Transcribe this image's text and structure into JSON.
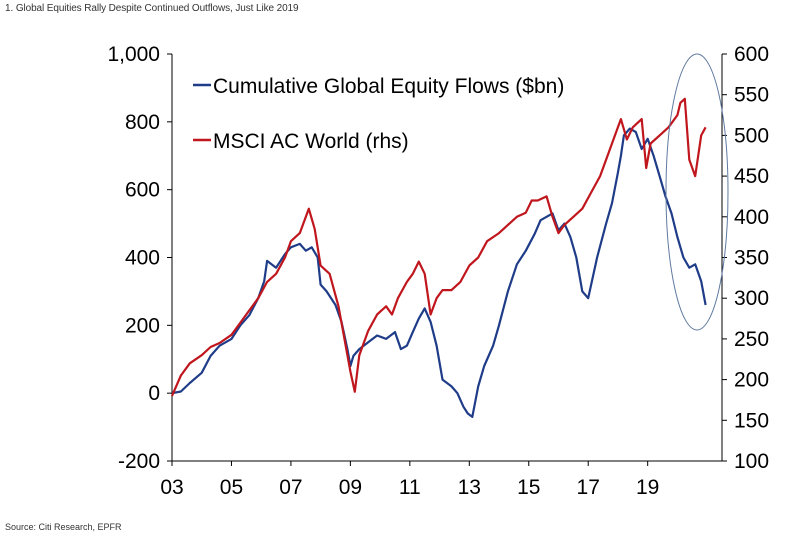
{
  "title": "1. Global Equities Rally Despite Continued Outflows, Just Like 2019",
  "source": "Source: Citi Research, EPFR",
  "chart_data": {
    "type": "line",
    "title": "1. Global Equities Rally Despite Continued Outflows, Just Like 2019",
    "xlabel": "",
    "ylabel": "",
    "x_tick_labels": [
      "03",
      "05",
      "07",
      "09",
      "11",
      "13",
      "15",
      "17",
      "19"
    ],
    "x_ticks": [
      2003,
      2005,
      2007,
      2009,
      2011,
      2013,
      2015,
      2017,
      2019
    ],
    "xlim": [
      2003,
      2021.5
    ],
    "y_left": {
      "lim": [
        -200,
        1000
      ],
      "ticks": [
        -200,
        0,
        200,
        400,
        600,
        800,
        1000
      ],
      "tick_labels": [
        "-200",
        "0",
        "200",
        "400",
        "600",
        "800",
        "1,000"
      ]
    },
    "y_right": {
      "lim": [
        100,
        600
      ],
      "ticks": [
        100,
        150,
        200,
        250,
        300,
        350,
        400,
        450,
        500,
        550,
        600
      ],
      "tick_labels": [
        "100",
        "150",
        "200",
        "250",
        "300",
        "350",
        "400",
        "450",
        "500",
        "550",
        "600"
      ]
    },
    "grid": false,
    "legend_position": "top-left",
    "annotation": "ellipse highlighting 2020 decline",
    "series": [
      {
        "name": "Cumulative Global Equity Flows ($bn)",
        "axis": "left",
        "color": "#1f3c88",
        "x": [
          2003.0,
          2003.3,
          2003.6,
          2004.0,
          2004.3,
          2004.6,
          2005.0,
          2005.3,
          2005.6,
          2005.9,
          2006.1,
          2006.2,
          2006.5,
          2006.8,
          2007.0,
          2007.3,
          2007.5,
          2007.7,
          2007.9,
          2008.0,
          2008.2,
          2008.5,
          2008.7,
          2008.9,
          2009.0,
          2009.1,
          2009.3,
          2009.6,
          2009.9,
          2010.2,
          2010.5,
          2010.7,
          2010.9,
          2011.1,
          2011.3,
          2011.5,
          2011.7,
          2011.9,
          2012.1,
          2012.4,
          2012.6,
          2012.8,
          2012.95,
          2013.1,
          2013.3,
          2013.5,
          2013.8,
          2014.0,
          2014.3,
          2014.6,
          2014.9,
          2015.2,
          2015.4,
          2015.6,
          2015.8,
          2016.0,
          2016.2,
          2016.4,
          2016.6,
          2016.8,
          2017.0,
          2017.3,
          2017.6,
          2017.8,
          2018.0,
          2018.1,
          2018.2,
          2018.4,
          2018.6,
          2018.8,
          2019.0,
          2019.2,
          2019.4,
          2019.6,
          2019.8,
          2020.0,
          2020.2,
          2020.4,
          2020.6,
          2020.8,
          2020.95
        ],
        "values": [
          0,
          5,
          30,
          60,
          110,
          140,
          160,
          200,
          230,
          280,
          330,
          390,
          370,
          410,
          430,
          440,
          420,
          430,
          400,
          320,
          300,
          260,
          210,
          130,
          80,
          110,
          130,
          150,
          170,
          160,
          180,
          130,
          140,
          180,
          220,
          250,
          210,
          140,
          40,
          20,
          0,
          -40,
          -60,
          -70,
          20,
          80,
          140,
          200,
          300,
          380,
          420,
          470,
          510,
          520,
          530,
          480,
          500,
          460,
          400,
          300,
          280,
          400,
          500,
          560,
          650,
          700,
          760,
          780,
          770,
          720,
          750,
          700,
          640,
          580,
          530,
          460,
          400,
          370,
          380,
          330,
          260
        ]
      },
      {
        "name": "MSCI AC World (rhs)",
        "axis": "right",
        "color": "#c0161d",
        "x": [
          2003.0,
          2003.3,
          2003.6,
          2004.0,
          2004.3,
          2004.6,
          2005.0,
          2005.3,
          2005.6,
          2005.9,
          2006.2,
          2006.5,
          2006.8,
          2007.0,
          2007.3,
          2007.6,
          2007.8,
          2008.0,
          2008.3,
          2008.6,
          2008.9,
          2009.0,
          2009.15,
          2009.3,
          2009.6,
          2009.9,
          2010.2,
          2010.4,
          2010.6,
          2010.9,
          2011.1,
          2011.3,
          2011.5,
          2011.7,
          2011.9,
          2012.1,
          2012.4,
          2012.7,
          2013.0,
          2013.3,
          2013.6,
          2014.0,
          2014.3,
          2014.6,
          2014.9,
          2015.1,
          2015.3,
          2015.6,
          2015.8,
          2016.0,
          2016.2,
          2016.5,
          2016.8,
          2017.1,
          2017.4,
          2017.7,
          2018.0,
          2018.1,
          2018.3,
          2018.5,
          2018.8,
          2018.95,
          2019.1,
          2019.4,
          2019.7,
          2020.0,
          2020.1,
          2020.25,
          2020.4,
          2020.6,
          2020.8,
          2020.95
        ],
        "values": [
          180,
          205,
          220,
          230,
          240,
          245,
          255,
          270,
          285,
          300,
          320,
          330,
          350,
          370,
          380,
          410,
          385,
          340,
          330,
          290,
          230,
          210,
          185,
          230,
          260,
          280,
          290,
          280,
          300,
          320,
          330,
          345,
          330,
          280,
          300,
          310,
          310,
          320,
          340,
          350,
          370,
          380,
          390,
          400,
          405,
          420,
          420,
          425,
          400,
          380,
          390,
          400,
          410,
          430,
          450,
          480,
          510,
          520,
          495,
          510,
          520,
          460,
          490,
          500,
          510,
          525,
          540,
          545,
          470,
          450,
          500,
          510
        ]
      }
    ]
  }
}
